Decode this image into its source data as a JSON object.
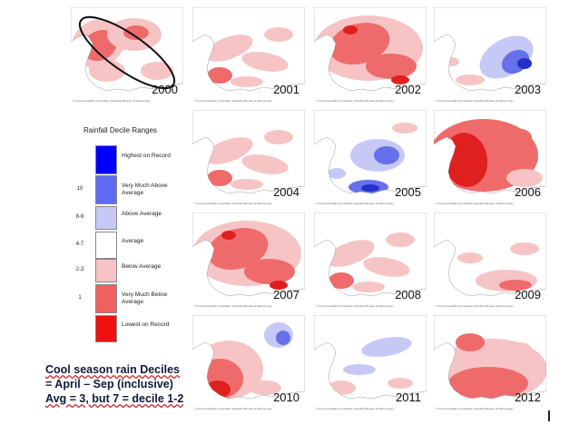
{
  "legend": {
    "title": "Rainfall Decile Ranges",
    "ranges": [
      {
        "decile": "",
        "label": "Highest on Record",
        "color": "#0000ff"
      },
      {
        "decile": "10",
        "label": "Very Much Above Average",
        "color": "#5f6bf0"
      },
      {
        "decile": "8-9",
        "label": "Above Average",
        "color": "#c6c8f6"
      },
      {
        "decile": "4-7",
        "label": "Average",
        "color": "#ffffff"
      },
      {
        "decile": "2-3",
        "label": "Below Average",
        "color": "#f6c4c4"
      },
      {
        "decile": "1",
        "label": "Very Much Below Average",
        "color": "#ef6060"
      },
      {
        "decile": "",
        "label": "Lowest on Record",
        "color": "#ee1111"
      }
    ]
  },
  "caption": {
    "line1": "Cool season rain Deciles",
    "line2": "= April – Sep (inclusive)",
    "line3": "Avg = 3, but 7 = decile 1-2"
  },
  "maps": [
    {
      "year": "2000",
      "pattern": "red-west",
      "highlighted": true
    },
    {
      "year": "2001",
      "pattern": "light-red"
    },
    {
      "year": "2002",
      "pattern": "red-heavy"
    },
    {
      "year": "2003",
      "pattern": "blue-east"
    },
    {
      "year": "2004",
      "pattern": "light-red"
    },
    {
      "year": "2005",
      "pattern": "blue-center"
    },
    {
      "year": "2006",
      "pattern": "deep-red"
    },
    {
      "year": "2007",
      "pattern": "red-heavy"
    },
    {
      "year": "2008",
      "pattern": "light-red"
    },
    {
      "year": "2009",
      "pattern": "light-red-south"
    },
    {
      "year": "2010",
      "pattern": "red-west-blue-ne"
    },
    {
      "year": "2011",
      "pattern": "blue-patches"
    },
    {
      "year": "2012",
      "pattern": "red-south"
    }
  ],
  "map_footer": "© Commonwealth of Australia, Australian Bureau of Meteorology",
  "colors": {
    "light_red": "#f6c4c4",
    "mid_red": "#ef6b6b",
    "deep_red": "#e02020",
    "light_blue": "#c6c8f6",
    "mid_blue": "#6670e8",
    "deep_blue": "#2430c8",
    "land": "#ffffff",
    "ocean": "#ffffff"
  }
}
